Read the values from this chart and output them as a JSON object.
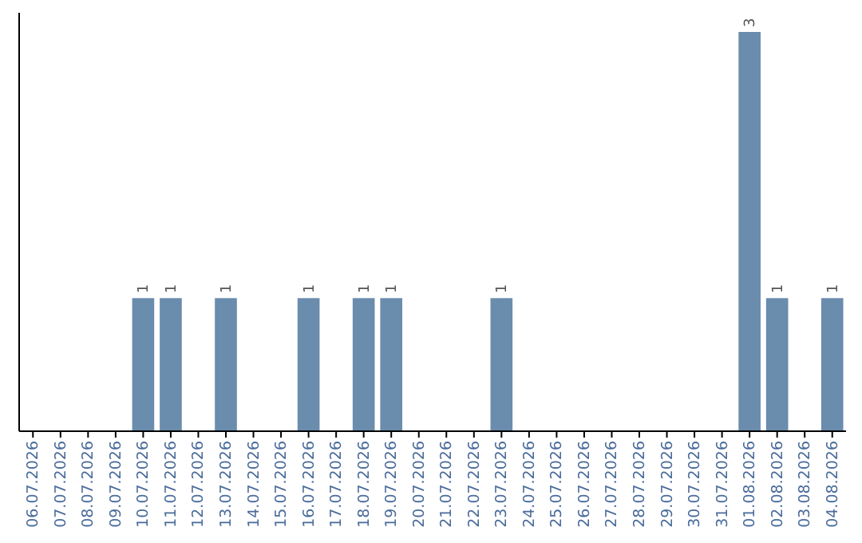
{
  "chart_data": {
    "type": "bar",
    "categories": [
      "06.07.2026",
      "07.07.2026",
      "08.07.2026",
      "09.07.2026",
      "10.07.2026",
      "11.07.2026",
      "12.07.2026",
      "13.07.2026",
      "14.07.2026",
      "15.07.2026",
      "16.07.2026",
      "17.07.2026",
      "18.07.2026",
      "19.07.2026",
      "20.07.2026",
      "21.07.2026",
      "22.07.2026",
      "23.07.2026",
      "24.07.2026",
      "25.07.2026",
      "26.07.2026",
      "27.07.2026",
      "28.07.2026",
      "29.07.2026",
      "30.07.2026",
      "31.07.2026",
      "01.08.2026",
      "02.08.2026",
      "03.08.2026",
      "04.08.2026"
    ],
    "values": [
      0,
      0,
      0,
      0,
      1,
      1,
      0,
      1,
      0,
      0,
      1,
      0,
      1,
      1,
      0,
      0,
      0,
      1,
      0,
      0,
      0,
      0,
      0,
      0,
      0,
      0,
      3,
      1,
      0,
      1
    ],
    "value_labels": [
      null,
      null,
      null,
      null,
      "1",
      "1",
      null,
      "1",
      null,
      null,
      "1",
      null,
      "1",
      "1",
      null,
      null,
      null,
      "1",
      null,
      null,
      null,
      null,
      null,
      null,
      null,
      null,
      "3",
      "1",
      null,
      "1"
    ],
    "color": "#6a8cad"
  }
}
